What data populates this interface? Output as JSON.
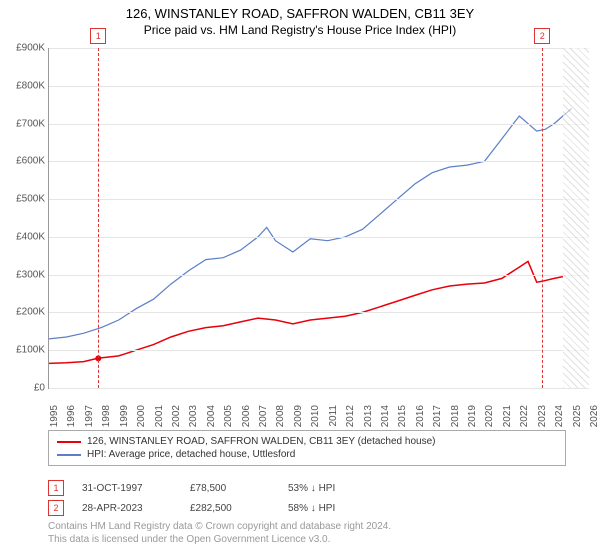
{
  "title": "126, WINSTANLEY ROAD, SAFFRON WALDEN, CB11 3EY",
  "subtitle": "Price paid vs. HM Land Registry's House Price Index (HPI)",
  "chart": {
    "type": "line",
    "xlim": [
      1995,
      2026
    ],
    "ylim": [
      0,
      900000
    ],
    "y_tick_step": 100000,
    "y_prefix": "£",
    "y_suffix": "K",
    "x_ticks": [
      1995,
      1996,
      1997,
      1998,
      1999,
      2000,
      2001,
      2002,
      2003,
      2004,
      2005,
      2006,
      2007,
      2008,
      2009,
      2010,
      2011,
      2012,
      2013,
      2014,
      2015,
      2016,
      2017,
      2018,
      2019,
      2020,
      2021,
      2022,
      2023,
      2024,
      2025,
      2026
    ],
    "background_color": "#ffffff",
    "grid_color": "#e5e5e5",
    "series": [
      {
        "name": "126, WINSTANLEY ROAD, SAFFRON WALDEN, CB11 3EY (detached house)",
        "color": "#e8000b",
        "width": 1.5,
        "data": [
          [
            1995,
            65000
          ],
          [
            1996,
            67000
          ],
          [
            1997,
            70000
          ],
          [
            1997.8,
            78500
          ],
          [
            1999,
            85000
          ],
          [
            2000,
            100000
          ],
          [
            2001,
            115000
          ],
          [
            2002,
            135000
          ],
          [
            2003,
            150000
          ],
          [
            2004,
            160000
          ],
          [
            2005,
            165000
          ],
          [
            2006,
            175000
          ],
          [
            2007,
            185000
          ],
          [
            2008,
            180000
          ],
          [
            2009,
            170000
          ],
          [
            2010,
            180000
          ],
          [
            2011,
            185000
          ],
          [
            2012,
            190000
          ],
          [
            2013,
            200000
          ],
          [
            2014,
            215000
          ],
          [
            2015,
            230000
          ],
          [
            2016,
            245000
          ],
          [
            2017,
            260000
          ],
          [
            2018,
            270000
          ],
          [
            2019,
            275000
          ],
          [
            2020,
            278000
          ],
          [
            2021,
            290000
          ],
          [
            2022,
            320000
          ],
          [
            2022.5,
            335000
          ],
          [
            2023,
            280000
          ],
          [
            2023.3,
            282500
          ],
          [
            2024,
            290000
          ],
          [
            2024.5,
            295000
          ]
        ]
      },
      {
        "name": "HPI: Average price, detached house, Uttlesford",
        "color": "#5b7fc7",
        "width": 1.2,
        "data": [
          [
            1995,
            130000
          ],
          [
            1996,
            135000
          ],
          [
            1997,
            145000
          ],
          [
            1998,
            160000
          ],
          [
            1999,
            180000
          ],
          [
            2000,
            210000
          ],
          [
            2001,
            235000
          ],
          [
            2002,
            275000
          ],
          [
            2003,
            310000
          ],
          [
            2004,
            340000
          ],
          [
            2005,
            345000
          ],
          [
            2006,
            365000
          ],
          [
            2007,
            400000
          ],
          [
            2007.5,
            425000
          ],
          [
            2008,
            390000
          ],
          [
            2009,
            360000
          ],
          [
            2010,
            395000
          ],
          [
            2011,
            390000
          ],
          [
            2012,
            400000
          ],
          [
            2013,
            420000
          ],
          [
            2014,
            460000
          ],
          [
            2015,
            500000
          ],
          [
            2016,
            540000
          ],
          [
            2017,
            570000
          ],
          [
            2018,
            585000
          ],
          [
            2019,
            590000
          ],
          [
            2020,
            600000
          ],
          [
            2021,
            660000
          ],
          [
            2022,
            720000
          ],
          [
            2022.5,
            700000
          ],
          [
            2023,
            680000
          ],
          [
            2023.5,
            685000
          ],
          [
            2024,
            700000
          ],
          [
            2024.5,
            720000
          ],
          [
            2025,
            740000
          ]
        ]
      }
    ],
    "markers": [
      {
        "n": "1",
        "year": 1997.83
      },
      {
        "n": "2",
        "year": 2023.32
      }
    ],
    "hatch_from_year": 2024.5
  },
  "legend_title": "",
  "events": [
    {
      "n": "1",
      "date": "31-OCT-1997",
      "price": "£78,500",
      "delta": "53% ↓ HPI"
    },
    {
      "n": "2",
      "date": "28-APR-2023",
      "price": "£282,500",
      "delta": "58% ↓ HPI"
    }
  ],
  "footer1": "Contains HM Land Registry data © Crown copyright and database right 2024.",
  "footer2": "This data is licensed under the Open Government Licence v3.0."
}
